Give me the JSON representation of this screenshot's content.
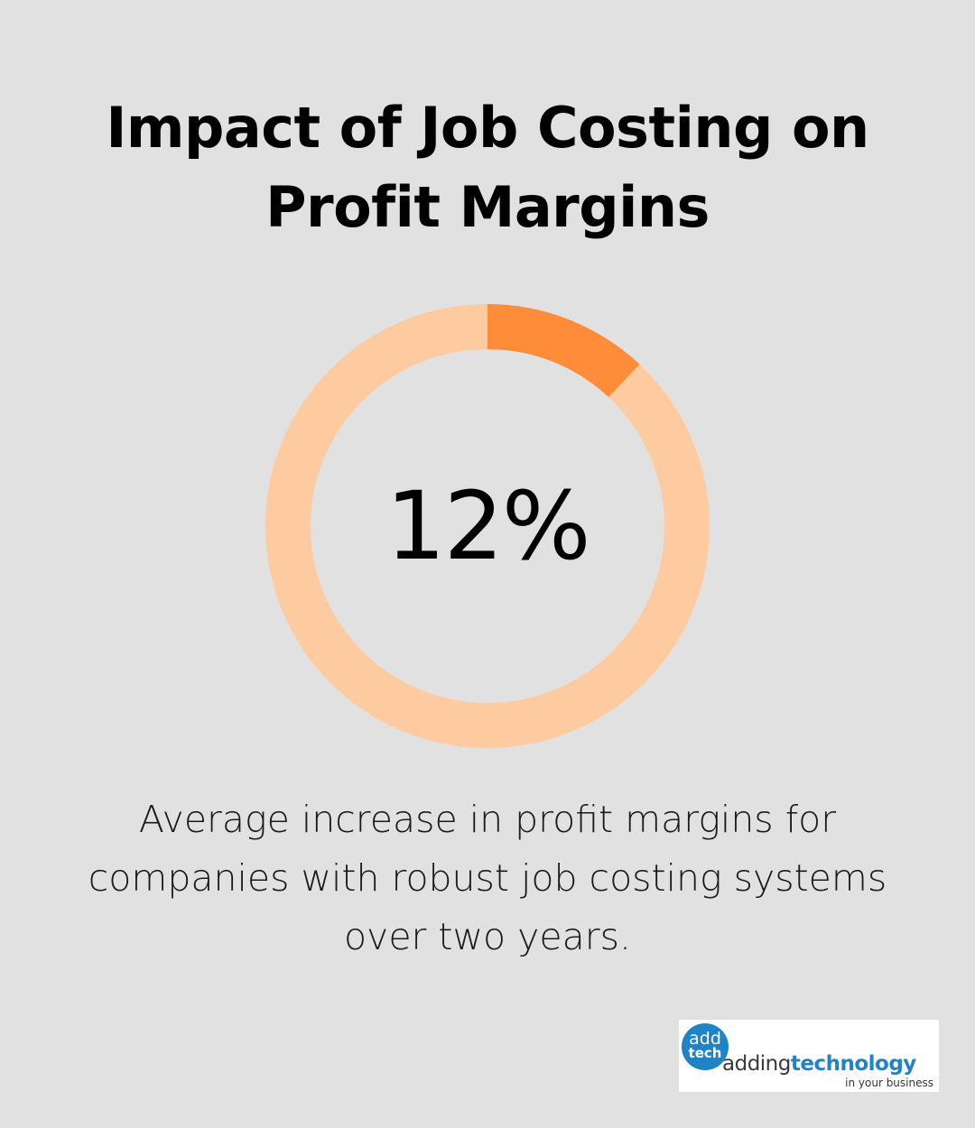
{
  "title": "Impact of Job Costing on Profit Margins",
  "chart_data": {
    "type": "pie",
    "value": 12,
    "total": 100,
    "label": "12%",
    "caption": "Average increase in profit margins for companies with robust job costing systems over two years.",
    "colors": {
      "value": "#ff8c38",
      "remainder": "#fecba1"
    }
  },
  "logo": {
    "badge_top": "add",
    "badge_bottom": "tech",
    "word_part1": "adding",
    "word_part2": "technology",
    "tagline": "in your business",
    "brand_color": "#1f84c6"
  }
}
